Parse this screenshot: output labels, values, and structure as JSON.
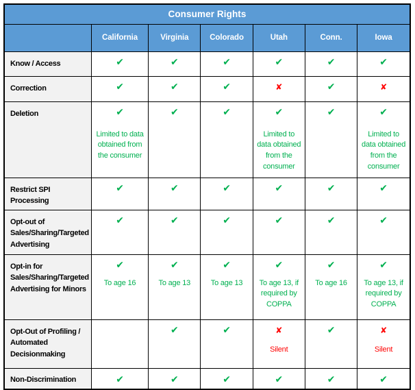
{
  "icons": {
    "check": "✔",
    "cross": "✘"
  },
  "colors": {
    "header_blue": "#5B9BD5",
    "label_gray": "#F2F2F2",
    "check_green": "#00B050",
    "cross_red": "#FF0000",
    "border": "#000000"
  },
  "chart_data": {
    "type": "table",
    "title": "Consumer Rights",
    "columns": [
      "California",
      "Virginia",
      "Colorado",
      "Utah",
      "Conn.",
      "Iowa"
    ],
    "rows": [
      {
        "label": "Know / Access",
        "cells": [
          {
            "mark": "check"
          },
          {
            "mark": "check"
          },
          {
            "mark": "check"
          },
          {
            "mark": "check"
          },
          {
            "mark": "check"
          },
          {
            "mark": "check"
          }
        ]
      },
      {
        "label": "Correction",
        "cells": [
          {
            "mark": "check"
          },
          {
            "mark": "check"
          },
          {
            "mark": "check"
          },
          {
            "mark": "cross"
          },
          {
            "mark": "check"
          },
          {
            "mark": "cross"
          }
        ]
      },
      {
        "label": "Deletion",
        "cells": [
          {
            "mark": "check",
            "note": "Limited to data obtained from the consumer"
          },
          {
            "mark": "check"
          },
          {
            "mark": "check"
          },
          {
            "mark": "check",
            "note": "Limited to data obtained from the consumer"
          },
          {
            "mark": "check"
          },
          {
            "mark": "check",
            "note": "Limited to data obtained from the consumer"
          }
        ]
      },
      {
        "label": "Restrict SPI Processing",
        "cells": [
          {
            "mark": "check"
          },
          {
            "mark": "check"
          },
          {
            "mark": "check"
          },
          {
            "mark": "check"
          },
          {
            "mark": "check"
          },
          {
            "mark": "check"
          }
        ]
      },
      {
        "label": "Opt-out of Sales/Sharing/Targeted Advertising",
        "cells": [
          {
            "mark": "check"
          },
          {
            "mark": "check"
          },
          {
            "mark": "check"
          },
          {
            "mark": "check"
          },
          {
            "mark": "check"
          },
          {
            "mark": "check"
          }
        ]
      },
      {
        "label": "Opt-in for Sales/Sharing/Targeted Advertising for Minors",
        "cells": [
          {
            "mark": "check",
            "note": "To age 16"
          },
          {
            "mark": "check",
            "note": "To age 13"
          },
          {
            "mark": "check",
            "note": "To age 13"
          },
          {
            "mark": "check",
            "note": "To age 13, if required by COPPA"
          },
          {
            "mark": "check",
            "note": "To age 16"
          },
          {
            "mark": "check",
            "note": "To age 13, if required by COPPA"
          }
        ]
      },
      {
        "label": "Opt-Out of Profiling / Automated Decisionmaking",
        "cells": [
          {
            "mark": "none"
          },
          {
            "mark": "check"
          },
          {
            "mark": "check"
          },
          {
            "mark": "cross",
            "note": "Silent"
          },
          {
            "mark": "check"
          },
          {
            "mark": "cross",
            "note": "Silent"
          }
        ]
      },
      {
        "label": "Non-Discrimination",
        "cells": [
          {
            "mark": "check"
          },
          {
            "mark": "check"
          },
          {
            "mark": "check"
          },
          {
            "mark": "check"
          },
          {
            "mark": "check"
          },
          {
            "mark": "check"
          }
        ]
      }
    ]
  }
}
